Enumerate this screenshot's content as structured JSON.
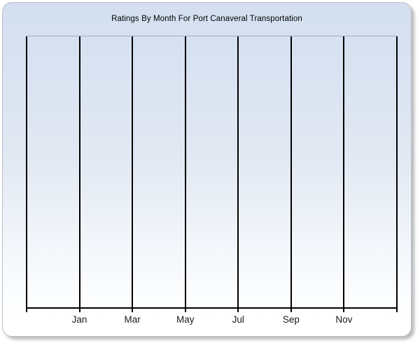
{
  "window": {
    "background_color": "#ffffff"
  },
  "panel": {
    "border_color": "#b9c0ca",
    "gradient_top_color": "#d3dff0",
    "gradient_bottom_color": "#ffffff",
    "shadow_color": "#999999"
  },
  "chart_data": {
    "type": "bar",
    "title": "Ratings By Month For Port Canaveral Transportation",
    "categories": [
      "Jan",
      "Mar",
      "May",
      "Jul",
      "Sep",
      "Nov"
    ],
    "series": [],
    "values": [],
    "xlabel": "",
    "ylabel": "",
    "y_tick_labels": [],
    "plot_columns": 7,
    "gridlines": "vertical only: 8 black lines forming 7 columns; month labels centered under internal lines 1-6",
    "legend": "none",
    "layout": {
      "axis_color": "#000000",
      "plot_top_border_color": "#a6aebf",
      "tick_label_color": "#1a1a1a",
      "plot_background": "transparent over panel gradient",
      "note_empty": "no data series rendered in plot area"
    }
  }
}
